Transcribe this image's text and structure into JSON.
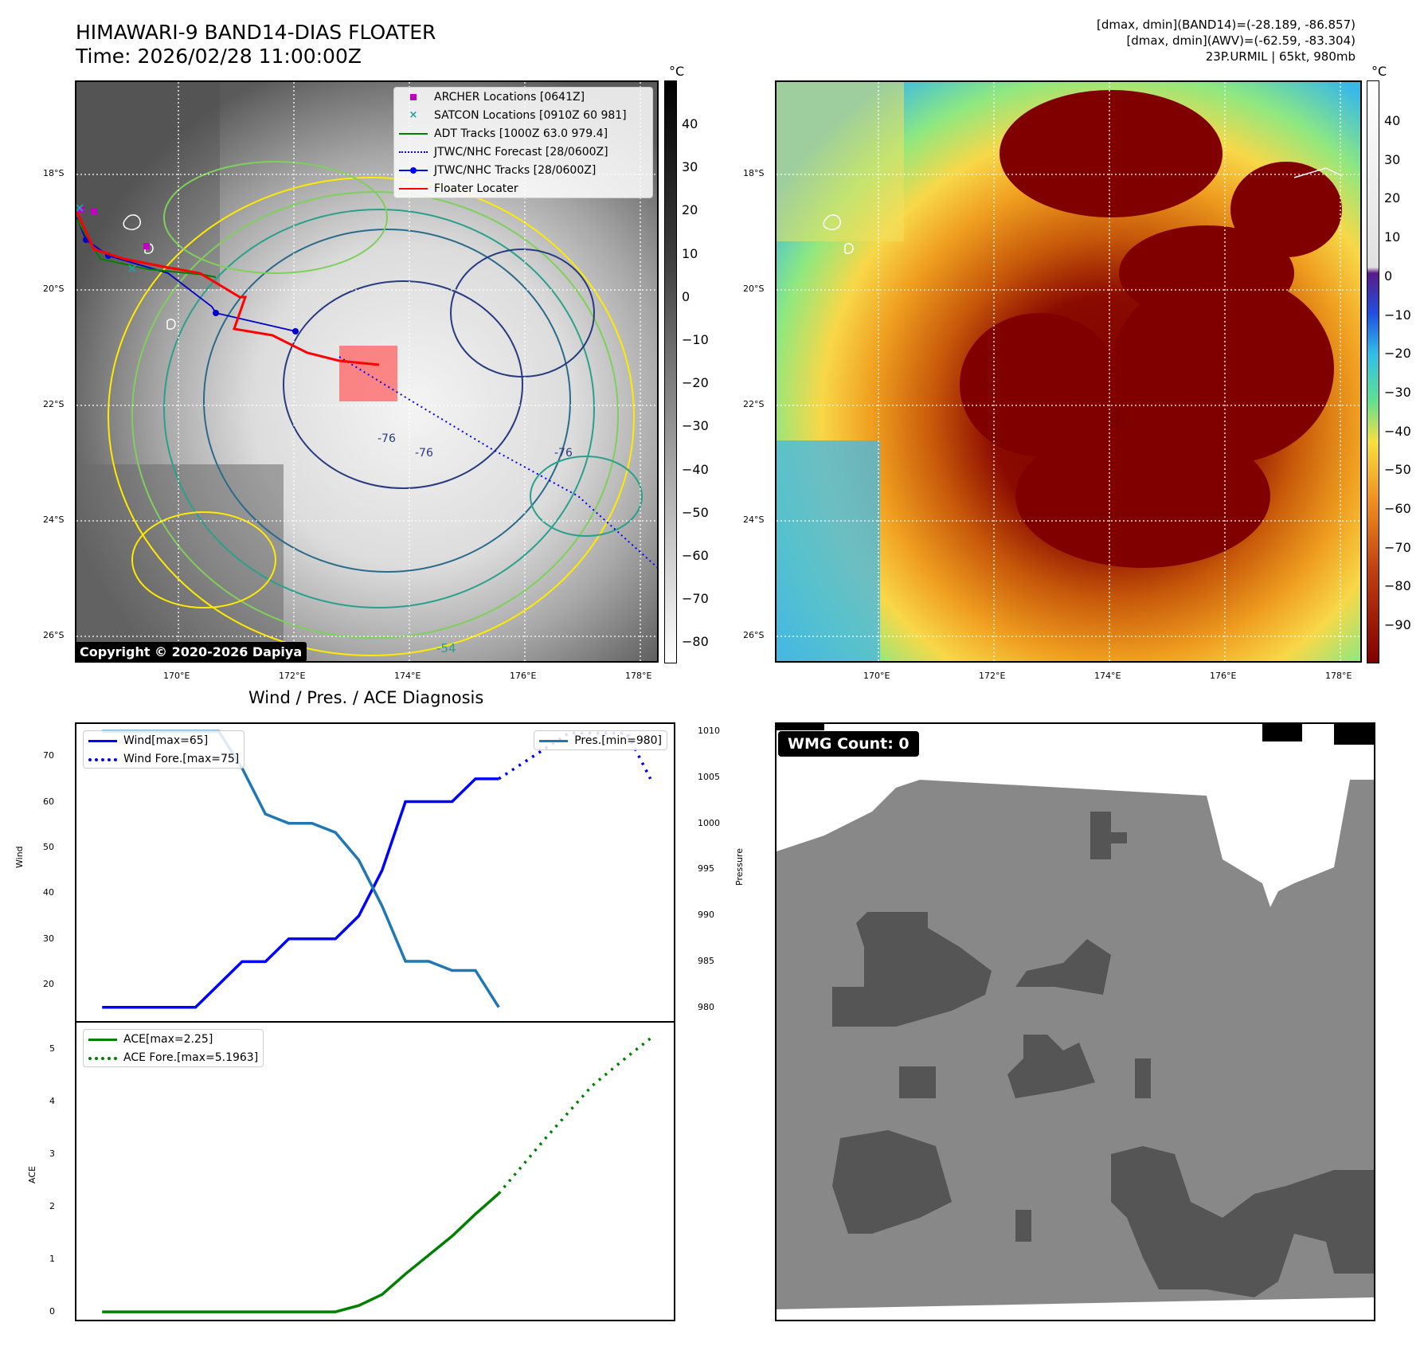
{
  "header": {
    "title_line1": "HIMAWARI-9 BAND14-DIAS FLOATER",
    "title_line2": "Time: 2026/02/28 11:00:00Z",
    "meta_line1": "[dmax, dmin](BAND14)=(-28.189, -86.857)",
    "meta_line2": "[dmax, dmin](AWV)=(-62.59, -83.304)",
    "meta_line3": "23P.URMIL | 65kt, 980mb"
  },
  "map": {
    "lat_labels": [
      "18°S",
      "20°S",
      "22°S",
      "24°S",
      "26°S"
    ],
    "lon_labels": [
      "170°E",
      "172°E",
      "174°E",
      "176°E",
      "178°E"
    ],
    "copyright": "Copyright © 2020-2026 Dapiya",
    "contour_labels": [
      "-76",
      "-76",
      "-54",
      "-76"
    ],
    "legend": [
      {
        "label": "ARCHER Locations [0641Z]",
        "color": "#c000c0",
        "symbol": "square"
      },
      {
        "label": "SATCON Locations [0910Z 60 981]",
        "color": "#20a0a0",
        "symbol": "x"
      },
      {
        "label": "ADT Tracks [1000Z 63.0 979.4]",
        "color": "#008000",
        "symbol": "line"
      },
      {
        "label": "JTWC/NHC Forecast [28/0600Z]",
        "color": "#0000ff",
        "symbol": "dotted"
      },
      {
        "label": "JTWC/NHC Tracks [28/0600Z]",
        "color": "#0000ff",
        "symbol": "line-dot"
      },
      {
        "label": "Floater Locater",
        "color": "#ff0000",
        "symbol": "line"
      }
    ]
  },
  "colorbar_gray": {
    "unit": "°C",
    "ticks": [
      "40",
      "30",
      "20",
      "10",
      "0",
      "−10",
      "−20",
      "−30",
      "−40",
      "−50",
      "−60",
      "−70",
      "−80"
    ]
  },
  "colorbar_color": {
    "unit": "°C",
    "ticks": [
      "40",
      "30",
      "20",
      "10",
      "0",
      "−10",
      "−20",
      "−30",
      "−40",
      "−50",
      "−60",
      "−70",
      "−80",
      "−90"
    ]
  },
  "diag_title": "Wind / Pres. / ACE Diagnosis",
  "wmg_label": "WMG Count: 0",
  "chart_data": [
    {
      "type": "line",
      "title": "Wind / Pres. / ACE Diagnosis",
      "ylabel": "Wind",
      "ylabel_right": "Pressure",
      "yticks": [
        "20",
        "30",
        "40",
        "50",
        "60",
        "70"
      ],
      "yticks_right": [
        "980",
        "985",
        "990",
        "995",
        "1000",
        "1005",
        "1010"
      ],
      "ylim": [
        12,
        77
      ],
      "ylim_right": [
        978.5,
        1010.8
      ],
      "series": [
        {
          "name": "Wind[max=65]",
          "color": "#0000ff",
          "style": "solid",
          "axis": "left",
          "x": [
            0,
            4,
            6,
            7,
            8,
            10,
            11,
            11.5,
            12,
            13,
            14,
            15,
            16,
            17
          ],
          "y": [
            15,
            15,
            25,
            25,
            30,
            30,
            35,
            40,
            45,
            60,
            60,
            60,
            65,
            65
          ]
        },
        {
          "name": "Wind Fore.[max=75]",
          "color": "#0000ff",
          "style": "dotted",
          "axis": "left",
          "x": [
            17,
            20,
            22.5,
            23.5
          ],
          "y": [
            65,
            75,
            75,
            65
          ]
        },
        {
          "name": "Pres.[min=980]",
          "color": "#1f77b4",
          "style": "solid",
          "axis": "right",
          "x": [
            0,
            5,
            6,
            7,
            8,
            9,
            10,
            11,
            12,
            13,
            14,
            15,
            16,
            17
          ],
          "y": [
            1010,
            1010,
            1006,
            1001,
            1000,
            1000,
            999,
            996,
            991,
            985,
            985,
            984,
            984,
            980
          ]
        }
      ]
    },
    {
      "type": "line",
      "ylabel": "ACE",
      "yticks": [
        "0",
        "1",
        "2",
        "3",
        "4",
        "5"
      ],
      "ylim": [
        -0.15,
        5.5
      ],
      "series": [
        {
          "name": "ACE[max=2.25]",
          "color": "#008000",
          "style": "solid",
          "x": [
            0,
            10,
            11,
            12,
            13,
            14,
            15,
            16,
            17
          ],
          "y": [
            0,
            0,
            0.12,
            0.33,
            0.72,
            1.08,
            1.44,
            1.86,
            2.25
          ]
        },
        {
          "name": "ACE Fore.[max=5.1963]",
          "color": "#008000",
          "style": "dotted",
          "x": [
            17,
            19,
            21,
            22.5,
            23.5
          ],
          "y": [
            2.25,
            3.3,
            4.3,
            4.85,
            5.2
          ]
        }
      ]
    }
  ]
}
